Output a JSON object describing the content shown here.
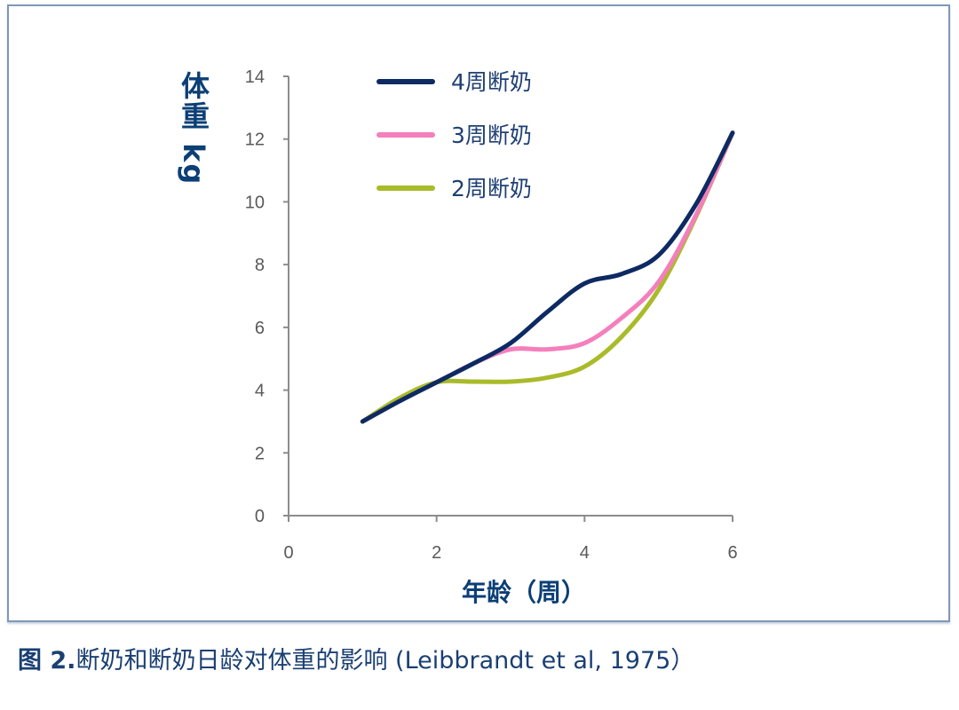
{
  "chart_data": {
    "type": "line",
    "title": "",
    "xlabel": "年龄（周）",
    "ylabel": "体重 kg",
    "xlim": [
      0,
      6
    ],
    "ylim": [
      0,
      14
    ],
    "xticks": [
      0,
      2,
      4,
      6
    ],
    "yticks": [
      0,
      2,
      4,
      6,
      8,
      10,
      12,
      14
    ],
    "grid": false,
    "legend_position": "top-center",
    "x": [
      1,
      1.5,
      2,
      2.5,
      3,
      3.5,
      4,
      4.5,
      5,
      5.5,
      6
    ],
    "series": [
      {
        "name": "4周断奶",
        "color": "#0d2a62",
        "values": [
          3.0,
          3.65,
          4.25,
          4.85,
          5.5,
          6.5,
          7.4,
          7.7,
          8.3,
          9.9,
          12.2
        ]
      },
      {
        "name": "3周断奶",
        "color": "#f47fbc",
        "values": [
          3.0,
          3.65,
          4.25,
          4.85,
          5.3,
          5.3,
          5.5,
          6.3,
          7.45,
          9.55,
          12.2
        ]
      },
      {
        "name": "2周断奶",
        "color": "#a9bb2a",
        "values": [
          3.0,
          3.75,
          4.25,
          4.27,
          4.27,
          4.4,
          4.75,
          5.7,
          7.2,
          9.5,
          12.2
        ]
      }
    ]
  },
  "caption": {
    "label": "图 2.",
    "text": "断奶和断奶日龄对体重的影响 (Leibbrandt et al, 1975）"
  }
}
